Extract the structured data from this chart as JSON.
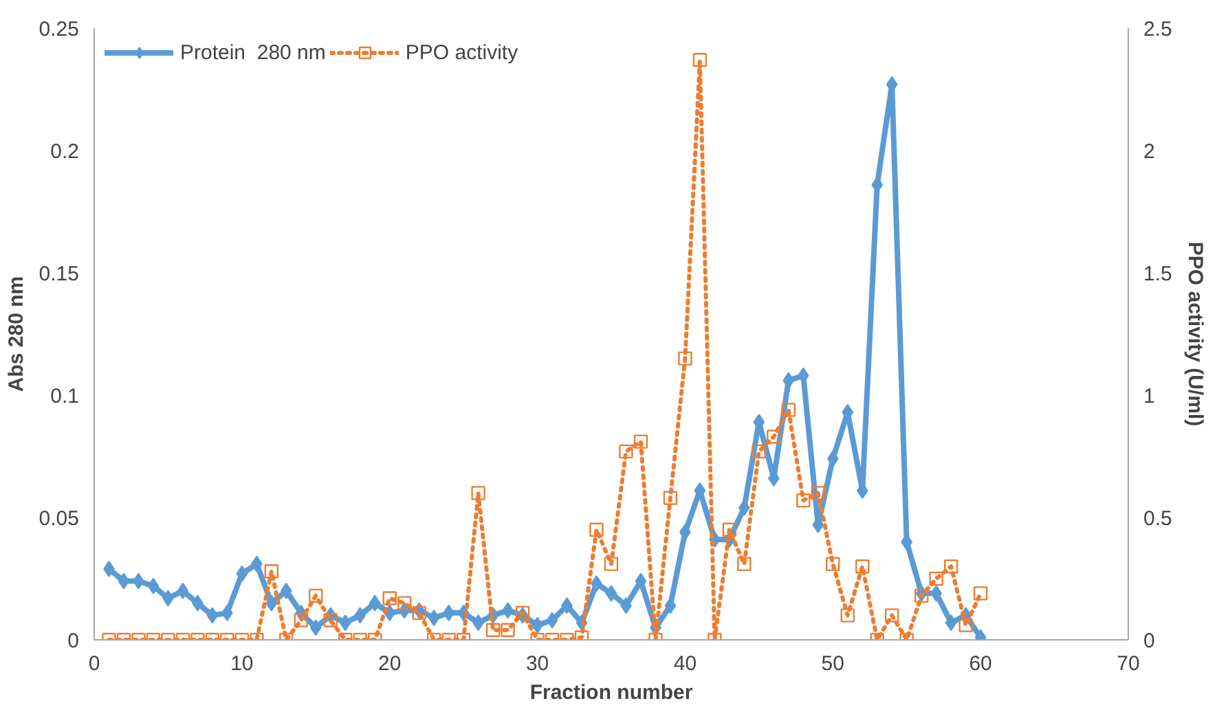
{
  "chart_data": {
    "type": "line",
    "xlabel": "Fraction number",
    "ylabel": "Abs 280 nm",
    "y2label": "PPO activity (U/ml)",
    "x": [
      1,
      2,
      3,
      4,
      5,
      6,
      7,
      8,
      9,
      10,
      11,
      12,
      13,
      14,
      15,
      16,
      17,
      18,
      19,
      20,
      21,
      22,
      23,
      24,
      25,
      26,
      27,
      28,
      29,
      30,
      31,
      32,
      33,
      34,
      35,
      36,
      37,
      38,
      39,
      40,
      41,
      42,
      43,
      44,
      45,
      46,
      47,
      48,
      49,
      50,
      51,
      52,
      53,
      54,
      55,
      56,
      57,
      58,
      59,
      60
    ],
    "series": [
      {
        "name": "Protein  280 nm",
        "color": "#5b9bd5",
        "marker": "diamond",
        "line_style": "solid",
        "values": [
          0.029,
          0.024,
          0.024,
          0.022,
          0.017,
          0.02,
          0.015,
          0.01,
          0.011,
          0.027,
          0.031,
          0.015,
          0.02,
          0.011,
          0.005,
          0.01,
          0.007,
          0.01,
          0.015,
          0.011,
          0.012,
          0.012,
          0.009,
          0.011,
          0.011,
          0.007,
          0.01,
          0.012,
          0.01,
          0.006,
          0.008,
          0.014,
          0.007,
          0.023,
          0.019,
          0.014,
          0.024,
          0.005,
          0.014,
          0.044,
          0.061,
          0.041,
          0.041,
          0.054,
          0.089,
          0.066,
          0.106,
          0.108,
          0.047,
          0.074,
          0.093,
          0.061,
          0.186,
          0.227,
          0.04,
          0.019,
          0.019,
          0.007,
          0.01,
          0.001
        ]
      },
      {
        "name": "PPO activity",
        "color": "#ed7d31",
        "marker": "square",
        "line_style": "dotted",
        "axis": "y2",
        "values": [
          0,
          0,
          0,
          0,
          0,
          0,
          0,
          0,
          0,
          0,
          0,
          0.28,
          0,
          0.08,
          0.18,
          0.08,
          0,
          0,
          0,
          0.17,
          0.15,
          0.11,
          0,
          0,
          0,
          0.6,
          0.04,
          0.04,
          0.11,
          0,
          0,
          0,
          0.01,
          0.45,
          0.31,
          0.77,
          0.81,
          0,
          0.58,
          1.15,
          2.37,
          0,
          0.45,
          0.31,
          0.77,
          0.83,
          0.94,
          0.57,
          0.6,
          0.31,
          0.1,
          0.3,
          0,
          0.1,
          0,
          0.18,
          0.25,
          0.3,
          0.06,
          0.19
        ]
      }
    ],
    "xlim": [
      0,
      70
    ],
    "xticks": [
      0,
      10,
      20,
      30,
      40,
      50,
      60,
      70
    ],
    "ylim": [
      0,
      0.25
    ],
    "yticks": [
      0,
      0.05,
      0.1,
      0.15,
      0.2,
      0.25
    ],
    "y2lim": [
      0,
      2.5
    ],
    "y2ticks": [
      0,
      0.5,
      1,
      1.5,
      2,
      2.5
    ],
    "grid": false,
    "legend": "top left"
  }
}
